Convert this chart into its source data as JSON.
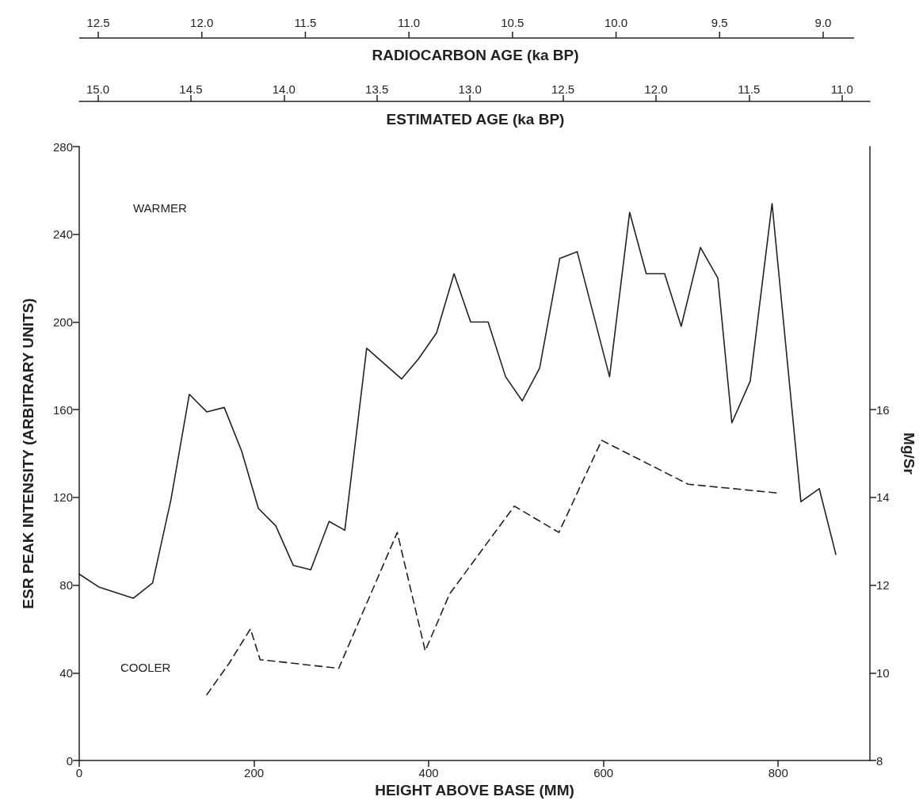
{
  "chart_data": {
    "type": "line",
    "xlabel": "HEIGHT ABOVE BASE (MM)",
    "ylabel": "ESR PEAK INTENSITY (ARBITRARY UNITS)",
    "y2label": "Mg/Sr",
    "x2label": "ESTIMATED AGE (ka BP)",
    "annotations": [
      "WARMER",
      "COOLER",
      "RADIOCARBON AGE (ka BP)",
      "12.5",
      "12.0",
      "11.5",
      "11.0",
      "10.5",
      "10.0",
      "9.5",
      "9.0"
    ],
    "xlim": [
      0,
      905
    ],
    "xticks": [
      0,
      200,
      400,
      600,
      800
    ],
    "ylim": [
      0,
      280
    ],
    "yticks": [
      0,
      40,
      80,
      120,
      160,
      200,
      240,
      280
    ],
    "y2lim": [
      8,
      22
    ],
    "y2ticks": [
      8,
      10,
      12,
      14,
      16
    ],
    "x2lim": [
      15.1,
      10.85
    ],
    "x2ticks": [
      {
        "value": 15,
        "label": "15.0"
      },
      {
        "value": 14.5,
        "label": "14.5"
      },
      {
        "value": 14,
        "label": "14.0"
      },
      {
        "value": 13.5,
        "label": "13.5"
      },
      {
        "value": 13,
        "label": "13.0"
      },
      {
        "value": 12.5,
        "label": "12.5"
      },
      {
        "value": 12,
        "label": "12.0"
      },
      {
        "value": 11.5,
        "label": "11.5"
      },
      {
        "value": 11,
        "label": "11.0"
      }
    ],
    "grid": false,
    "marker": "none",
    "series": [
      {
        "color": "#222222",
        "line_style": "solid",
        "x": [
          0,
          23,
          62,
          84,
          105,
          126,
          146,
          166,
          186,
          205,
          225,
          245,
          265,
          286,
          304,
          329,
          369,
          388,
          409,
          429,
          448,
          468,
          488,
          507,
          527,
          550,
          570,
          607,
          630,
          649,
          670,
          689,
          711,
          731,
          747,
          768,
          793,
          826,
          847,
          866
        ],
        "values": [
          85,
          79,
          74,
          81,
          119,
          167,
          159,
          161,
          141,
          115,
          107,
          89,
          87,
          109,
          105,
          188,
          174,
          183,
          195,
          222,
          200,
          200,
          175,
          164,
          179,
          229,
          232,
          175,
          250,
          222,
          222,
          198,
          234,
          220,
          154,
          173,
          254,
          118,
          124,
          94
        ]
      },
      {
        "color": "#222222",
        "line_style": "dashed",
        "axis": "y2",
        "x": [
          146,
          171,
          196,
          207,
          297,
          364,
          396,
          424,
          498,
          549,
          598,
          697,
          799
        ],
        "values": [
          9.5,
          10.2,
          11.0,
          10.3,
          10.1,
          13.2,
          10.5,
          11.8,
          13.8,
          13.2,
          15.3,
          14.3,
          14.1
        ]
      }
    ]
  }
}
